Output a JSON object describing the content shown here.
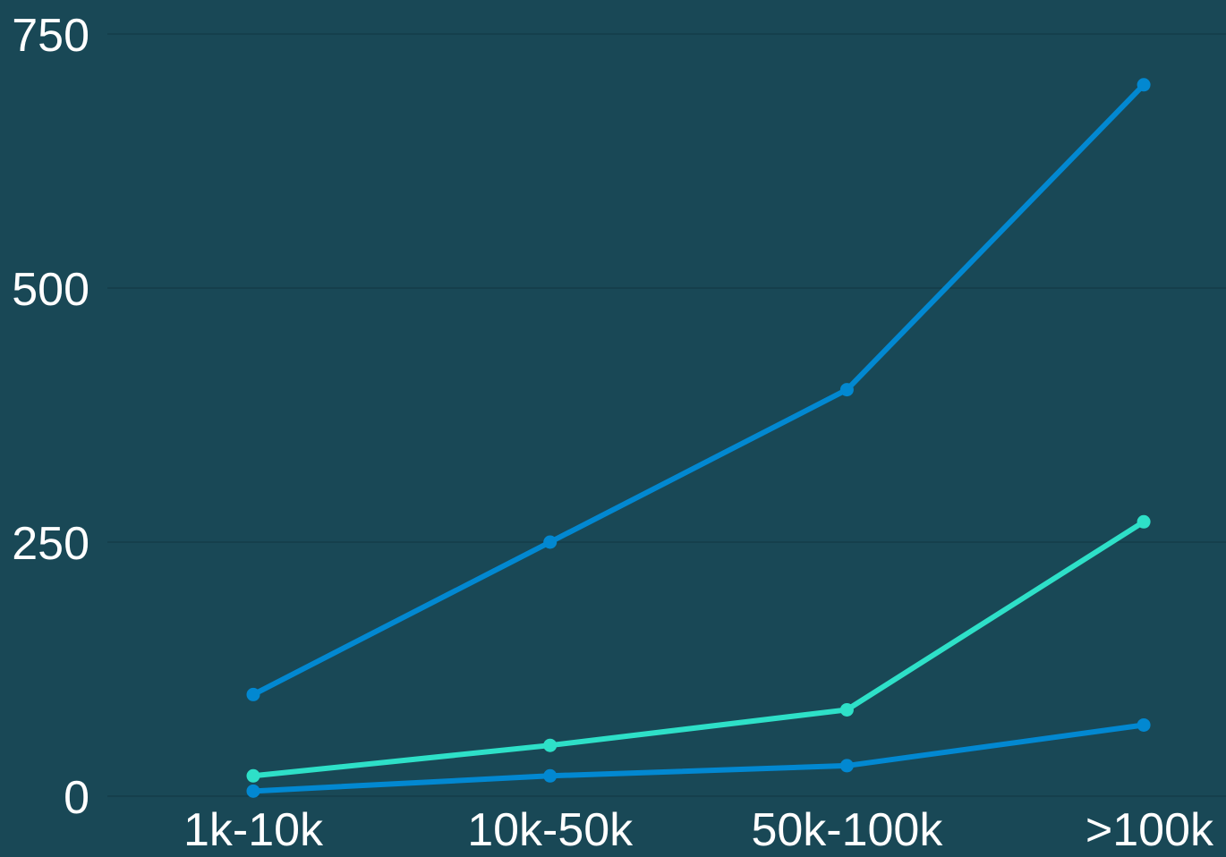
{
  "colors": {
    "background": "#194856",
    "gridline": "#143c48",
    "text": "#ffffff"
  },
  "chart_data": {
    "type": "line",
    "title": "",
    "xlabel": "",
    "ylabel": "",
    "categories": [
      "1k-10k",
      "10k-50k",
      "50k-100k",
      ">100k"
    ],
    "ylim": [
      0,
      750
    ],
    "yticks": [
      "0",
      "250",
      "500",
      "750"
    ],
    "grid": true,
    "legend": "none",
    "series": [
      {
        "values": [
          100,
          250,
          400,
          700
        ],
        "color": "#0288d1"
      },
      {
        "values": [
          20,
          50,
          85,
          270
        ],
        "color": "#2ee0c8"
      },
      {
        "values": [
          5,
          20,
          30,
          70
        ],
        "color": "#0288d1"
      }
    ]
  }
}
